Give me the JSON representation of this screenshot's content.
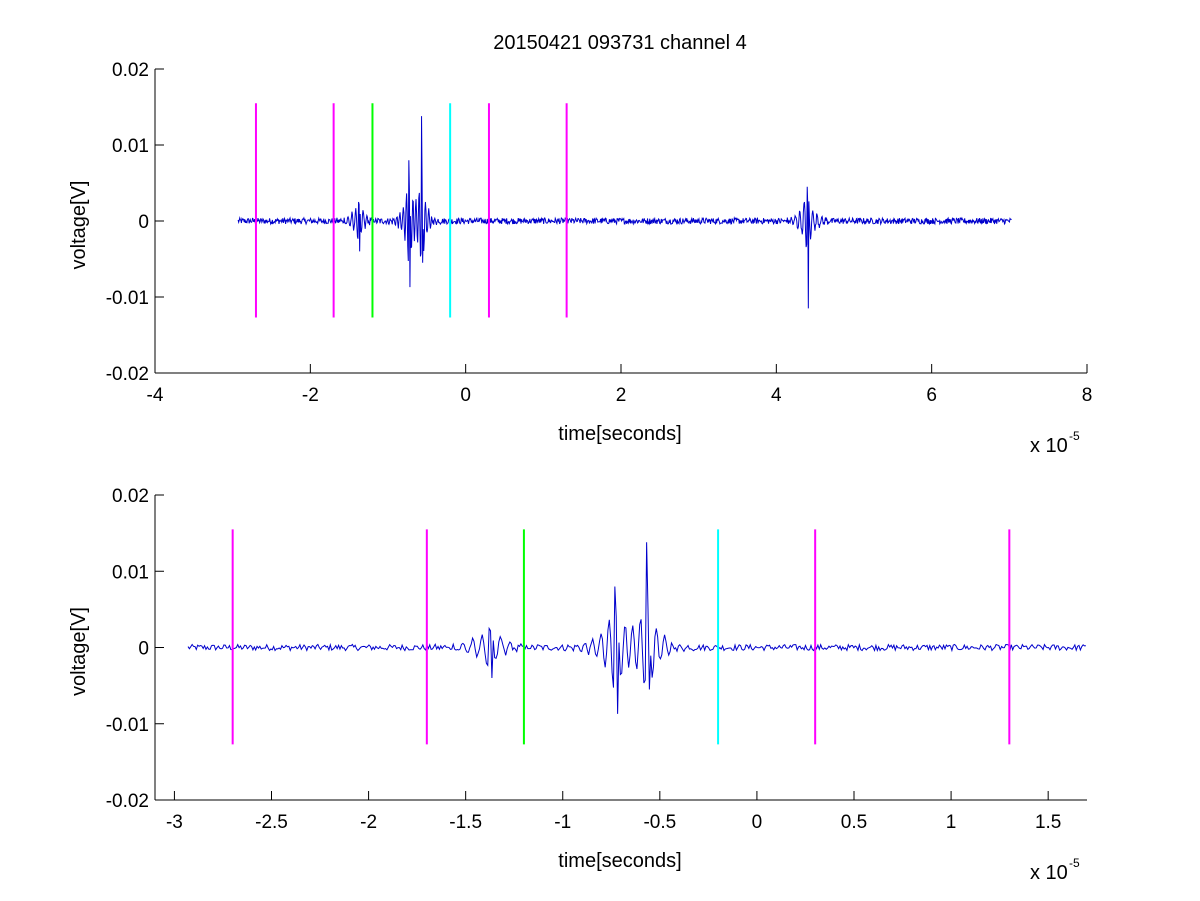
{
  "chart_data": {
    "title": "20150421 093731 channel 4",
    "signal_color": "#0000cc",
    "marker_colors": {
      "magenta": "#ff00ff",
      "green": "#00ff00",
      "cyan": "#00ffff"
    },
    "markers": [
      {
        "x": -2.7e-05,
        "color": "magenta"
      },
      {
        "x": -1.7e-05,
        "color": "magenta"
      },
      {
        "x": -1.2e-05,
        "color": "green"
      },
      {
        "x": -2e-06,
        "color": "cyan"
      },
      {
        "x": 3e-06,
        "color": "magenta"
      },
      {
        "x": 1.3e-05,
        "color": "magenta"
      }
    ],
    "marker_ylim": [
      -0.0127,
      0.0155
    ],
    "signal": {
      "x_start": -2.93e-05,
      "x_end": 7.03e-05,
      "baseline": 0.0,
      "noise_amplitude": 0.0004,
      "events": [
        {
          "t": -1.38e-05,
          "amp": 0.003,
          "peak_pos": 0.0025,
          "peak_neg": -0.004,
          "width": 7e-07
        },
        {
          "t": -7.3e-06,
          "amp": 0.006,
          "peak_pos": 0.008,
          "peak_neg": -0.0087,
          "width": 6e-07
        },
        {
          "t": -5.7e-06,
          "amp": 0.006,
          "peak_pos": 0.0138,
          "peak_neg": -0.0055,
          "width": 6e-07
        },
        {
          "t": 4.4e-05,
          "amp": 0.004,
          "peak_pos": 0.0045,
          "peak_neg": -0.0115,
          "width": 8e-07
        }
      ]
    },
    "subplots": [
      {
        "type": "line",
        "xlabel": "time[seconds]",
        "ylabel": "voltage[V]",
        "xlim": [
          -4e-05,
          8e-05
        ],
        "ylim": [
          -0.02,
          0.02
        ],
        "x_ticks": [
          -4e-05,
          -2e-05,
          0,
          2e-05,
          4e-05,
          6e-05,
          8e-05
        ],
        "x_tick_labels": [
          "-4",
          "-2",
          "0",
          "2",
          "4",
          "6",
          "8"
        ],
        "y_ticks": [
          -0.02,
          -0.01,
          0,
          0.01,
          0.02
        ],
        "y_tick_labels": [
          "-0.02",
          "-0.01",
          "0",
          "0.01",
          "0.02"
        ],
        "x_exponent_base": "x 10",
        "x_exponent_power": "-5",
        "grid": false
      },
      {
        "type": "line",
        "xlabel": "time[seconds]",
        "ylabel": "voltage[V]",
        "xlim": [
          -3.1e-05,
          1.7e-05
        ],
        "ylim": [
          -0.02,
          0.02
        ],
        "x_ticks": [
          -3e-05,
          -2.5e-05,
          -2e-05,
          -1.5e-05,
          -1e-05,
          -5e-06,
          0,
          5e-06,
          1e-05,
          1.5e-05
        ],
        "x_tick_labels": [
          "-3",
          "-2.5",
          "-2",
          "-1.5",
          "-1",
          "-0.5",
          "0",
          "0.5",
          "1",
          "1.5"
        ],
        "y_ticks": [
          -0.02,
          -0.01,
          0,
          0.01,
          0.02
        ],
        "y_tick_labels": [
          "-0.02",
          "-0.01",
          "0",
          "0.01",
          "0.02"
        ],
        "x_exponent_base": "x 10",
        "x_exponent_power": "-5",
        "grid": false
      }
    ]
  }
}
